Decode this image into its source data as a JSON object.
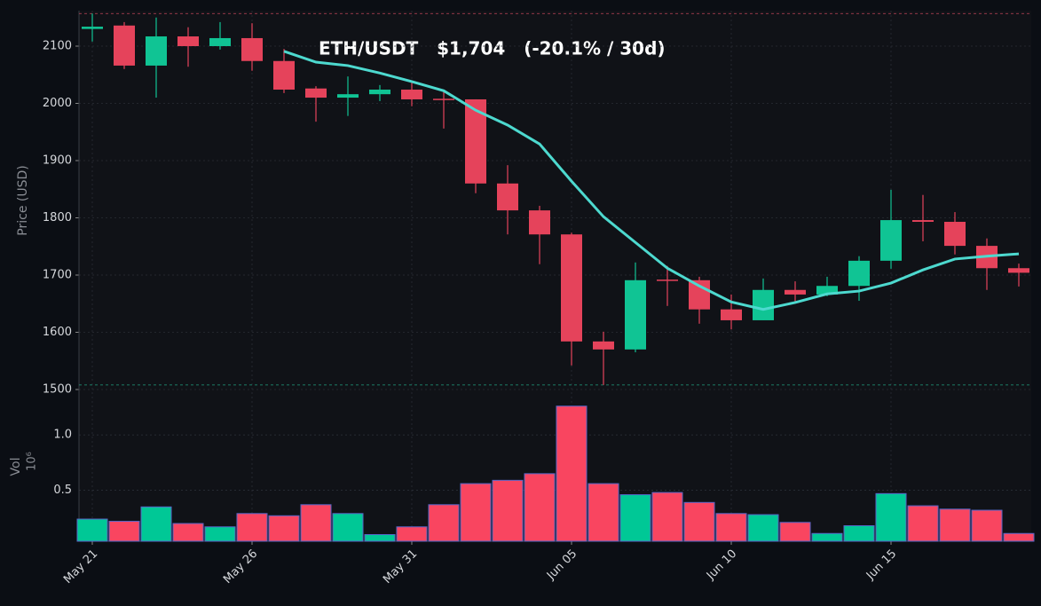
{
  "chart_data": {
    "type": "candlestick",
    "title": "ETH/USDT   $1,704   (-20.1% / 30d)",
    "y_label": "Price (USD)",
    "volume_label": "Vol",
    "volume_unit": "10⁶",
    "categories": [
      "May 21",
      null,
      null,
      null,
      null,
      "May 26",
      null,
      null,
      null,
      null,
      "May 31",
      null,
      null,
      null,
      null,
      "Jun 05",
      null,
      null,
      null,
      null,
      "Jun 10",
      null,
      null,
      null,
      null,
      "Jun 15",
      null,
      null,
      null,
      null
    ],
    "open": [
      2130,
      2136,
      2066,
      2117,
      2100,
      2114,
      2074,
      2026,
      2010,
      2016,
      2024,
      2008,
      2007,
      1860,
      1813,
      1771,
      1584,
      1570,
      1692,
      1691,
      1640,
      1621,
      1674,
      1666,
      1681,
      1725,
      1796,
      1793,
      1751,
      1712
    ],
    "high": [
      2157,
      2142,
      2150,
      2133,
      2142,
      2140,
      2095,
      2030,
      2047,
      2032,
      2036,
      2021,
      2007,
      1892,
      1821,
      1774,
      1601,
      1722,
      1716,
      1697,
      1666,
      1694,
      1689,
      1697,
      1733,
      1849,
      1840,
      1810,
      1764,
      1720
    ],
    "low": [
      2108,
      2060,
      2010,
      2064,
      2094,
      2057,
      2018,
      1968,
      1978,
      2004,
      1995,
      1956,
      1843,
      1771,
      1719,
      1542,
      1508,
      1565,
      1646,
      1615,
      1605,
      1621,
      1653,
      1663,
      1655,
      1711,
      1759,
      1736,
      1674,
      1680
    ],
    "close": [
      2134,
      2066,
      2117,
      2100,
      2114,
      2074,
      2024,
      2010,
      2016,
      2024,
      2007,
      2007,
      1860,
      1813,
      1771,
      1584,
      1570,
      1691,
      1691,
      1640,
      1621,
      1674,
      1666,
      1681,
      1725,
      1796,
      1793,
      1751,
      1712,
      1704
    ],
    "volume": [
      0.24,
      0.22,
      0.35,
      0.2,
      0.17,
      0.29,
      0.27,
      0.37,
      0.29,
      0.1,
      0.17,
      0.37,
      0.56,
      0.59,
      0.65,
      1.26,
      0.56,
      0.46,
      0.48,
      0.39,
      0.29,
      0.28,
      0.21,
      0.11,
      0.18,
      0.47,
      0.36,
      0.33,
      0.32,
      0.11
    ],
    "moving_average": {
      "color": "#4dd9cf",
      "values": [
        null,
        null,
        null,
        null,
        null,
        null,
        2091,
        2072,
        2066,
        2053,
        2038,
        2022,
        1988,
        1962,
        1929,
        1864,
        1802,
        1757,
        1712,
        1681,
        1653,
        1640,
        1652,
        1667,
        1672,
        1686,
        1709,
        1728,
        1733,
        1737
      ]
    },
    "up_color": "#10c494",
    "down_color": "#e5435b",
    "volume_up_color": "#00c896",
    "volume_down_color": "#f94560",
    "ylim": [
      1500,
      2162
    ],
    "yticks": [
      1500,
      1600,
      1700,
      1800,
      1900,
      2000,
      2100
    ],
    "volume_ylim": [
      0.04,
      1.41
    ],
    "volume_yticks": [
      0.5,
      {
        "value": 1,
        "label": "1.0"
      }
    ],
    "grid": true
  }
}
